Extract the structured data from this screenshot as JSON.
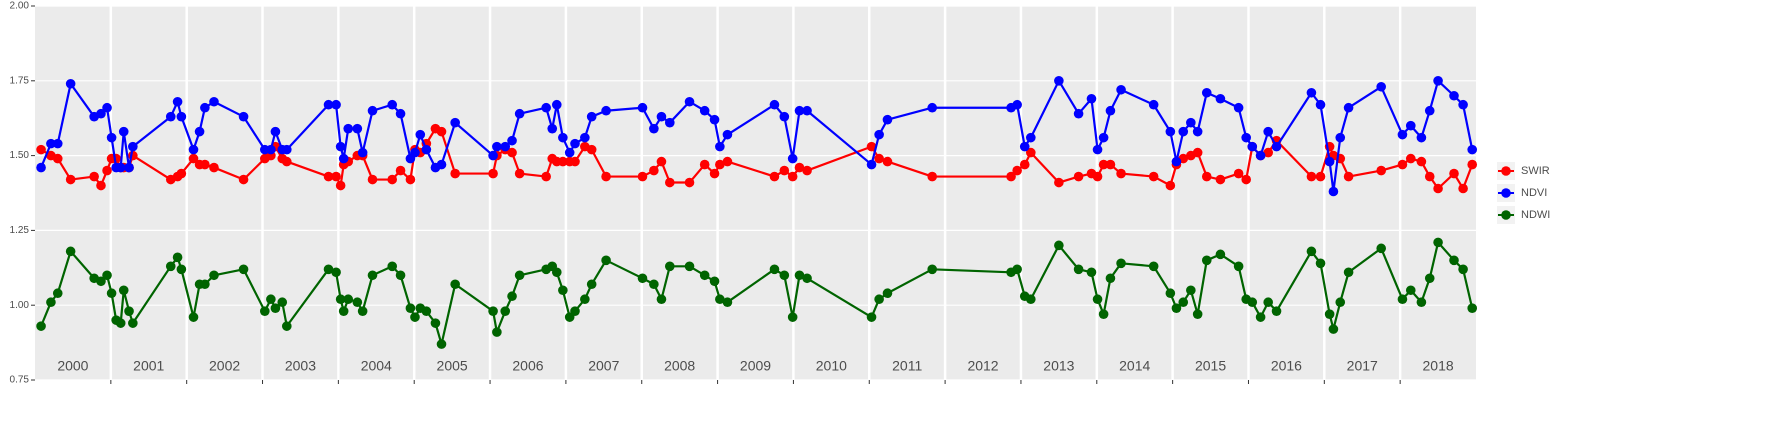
{
  "chart_data": {
    "type": "line",
    "x": [
      2000.08,
      2000.21,
      2000.3,
      2000.47,
      2000.78,
      2000.87,
      2000.95,
      2001.01,
      2001.07,
      2001.13,
      2001.17,
      2001.24,
      2001.29,
      2001.79,
      2001.88,
      2001.93,
      2002.09,
      2002.17,
      2002.24,
      2002.36,
      2002.75,
      2003.03,
      2003.11,
      2003.17,
      2003.26,
      2003.32,
      2003.87,
      2003.97,
      2004.03,
      2004.07,
      2004.13,
      2004.25,
      2004.32,
      2004.45,
      2004.71,
      2004.82,
      2004.95,
      2005.01,
      2005.08,
      2005.16,
      2005.28,
      2005.36,
      2005.54,
      2006.04,
      2006.09,
      2006.2,
      2006.29,
      2006.39,
      2006.74,
      2006.82,
      2006.88,
      2006.96,
      2007.05,
      2007.12,
      2007.25,
      2007.34,
      2007.53,
      2008.01,
      2008.16,
      2008.26,
      2008.37,
      2008.63,
      2008.83,
      2008.96,
      2009.03,
      2009.13,
      2009.75,
      2009.88,
      2009.99,
      2010.08,
      2010.18,
      2011.03,
      2011.13,
      2011.24,
      2011.83,
      2012.87,
      2012.95,
      2013.05,
      2013.13,
      2013.5,
      2013.76,
      2013.93,
      2014.01,
      2014.09,
      2014.18,
      2014.32,
      2014.75,
      2014.97,
      2015.05,
      2015.14,
      2015.24,
      2015.33,
      2015.45,
      2015.63,
      2015.87,
      2015.97,
      2016.05,
      2016.16,
      2016.26,
      2016.37,
      2016.83,
      2016.95,
      2017.07,
      2017.12,
      2017.21,
      2017.32,
      2017.75,
      2018.03,
      2018.14,
      2018.28,
      2018.39,
      2018.5,
      2018.71,
      2018.83,
      2018.95
    ],
    "series": [
      {
        "name": "SWIR",
        "color": "#ff0000",
        "values": [
          1.52,
          1.5,
          1.49,
          1.42,
          1.43,
          1.4,
          1.45,
          1.49,
          1.49,
          1.46,
          1.46,
          1.46,
          1.5,
          1.42,
          1.43,
          1.44,
          1.49,
          1.47,
          1.47,
          1.46,
          1.42,
          1.49,
          1.5,
          1.53,
          1.49,
          1.48,
          1.43,
          1.43,
          1.4,
          1.47,
          1.48,
          1.5,
          1.5,
          1.42,
          1.42,
          1.45,
          1.42,
          1.52,
          1.51,
          1.54,
          1.59,
          1.58,
          1.44,
          1.44,
          1.5,
          1.52,
          1.51,
          1.44,
          1.43,
          1.49,
          1.48,
          1.48,
          1.48,
          1.48,
          1.53,
          1.52,
          1.43,
          1.43,
          1.45,
          1.48,
          1.41,
          1.41,
          1.47,
          1.44,
          1.47,
          1.48,
          1.43,
          1.45,
          1.43,
          1.46,
          1.45,
          1.53,
          1.49,
          1.48,
          1.43,
          1.43,
          1.45,
          1.47,
          1.51,
          1.41,
          1.43,
          1.44,
          1.43,
          1.47,
          1.47,
          1.44,
          1.43,
          1.4,
          1.47,
          1.49,
          1.5,
          1.51,
          1.43,
          1.42,
          1.44,
          1.42,
          1.53,
          1.5,
          1.51,
          1.55,
          1.43,
          1.43,
          1.53,
          1.5,
          1.49,
          1.43,
          1.45,
          1.47,
          1.49,
          1.48,
          1.43,
          1.39,
          1.44,
          1.39,
          1.47
        ]
      },
      {
        "name": "NDVI",
        "color": "#0000ff",
        "values": [
          1.46,
          1.54,
          1.54,
          1.74,
          1.63,
          1.64,
          1.66,
          1.56,
          1.46,
          1.46,
          1.58,
          1.46,
          1.53,
          1.63,
          1.68,
          1.63,
          1.52,
          1.58,
          1.66,
          1.68,
          1.63,
          1.52,
          1.52,
          1.58,
          1.52,
          1.52,
          1.67,
          1.67,
          1.53,
          1.49,
          1.59,
          1.59,
          1.51,
          1.65,
          1.67,
          1.64,
          1.49,
          1.51,
          1.57,
          1.52,
          1.46,
          1.47,
          1.61,
          1.5,
          1.53,
          1.53,
          1.55,
          1.64,
          1.66,
          1.59,
          1.67,
          1.56,
          1.51,
          1.54,
          1.56,
          1.63,
          1.65,
          1.66,
          1.59,
          1.63,
          1.61,
          1.68,
          1.65,
          1.62,
          1.53,
          1.57,
          1.67,
          1.63,
          1.49,
          1.65,
          1.65,
          1.47,
          1.57,
          1.62,
          1.66,
          1.66,
          1.67,
          1.53,
          1.56,
          1.75,
          1.64,
          1.69,
          1.52,
          1.56,
          1.65,
          1.72,
          1.67,
          1.58,
          1.48,
          1.58,
          1.61,
          1.58,
          1.71,
          1.69,
          1.66,
          1.56,
          1.53,
          1.5,
          1.58,
          1.53,
          1.71,
          1.67,
          1.48,
          1.38,
          1.56,
          1.66,
          1.73,
          1.57,
          1.6,
          1.56,
          1.65,
          1.75,
          1.7,
          1.67,
          1.52
        ]
      },
      {
        "name": "NDWI",
        "color": "#006400",
        "values": [
          0.93,
          1.01,
          1.04,
          1.18,
          1.09,
          1.08,
          1.1,
          1.04,
          0.95,
          0.94,
          1.05,
          0.98,
          0.94,
          1.13,
          1.16,
          1.12,
          0.96,
          1.07,
          1.07,
          1.1,
          1.12,
          0.98,
          1.02,
          0.99,
          1.01,
          0.93,
          1.12,
          1.11,
          1.02,
          0.98,
          1.02,
          1.01,
          0.98,
          1.1,
          1.13,
          1.1,
          0.99,
          0.96,
          0.99,
          0.98,
          0.94,
          0.87,
          1.07,
          0.98,
          0.91,
          0.98,
          1.03,
          1.1,
          1.12,
          1.13,
          1.11,
          1.05,
          0.96,
          0.98,
          1.02,
          1.07,
          1.15,
          1.09,
          1.07,
          1.02,
          1.13,
          1.13,
          1.1,
          1.08,
          1.02,
          1.01,
          1.12,
          1.1,
          0.96,
          1.1,
          1.09,
          0.96,
          1.02,
          1.04,
          1.12,
          1.11,
          1.12,
          1.03,
          1.02,
          1.2,
          1.12,
          1.11,
          1.02,
          0.97,
          1.09,
          1.14,
          1.13,
          1.04,
          0.99,
          1.01,
          1.05,
          0.97,
          1.15,
          1.17,
          1.13,
          1.02,
          1.01,
          0.96,
          1.01,
          0.98,
          1.18,
          1.14,
          0.97,
          0.92,
          1.01,
          1.11,
          1.19,
          1.02,
          1.05,
          1.01,
          1.09,
          1.21,
          1.15,
          1.12,
          0.99
        ]
      }
    ],
    "xlim": [
      2000,
      2019
    ],
    "xticks": [
      {
        "value": 2000.5,
        "label": "2000"
      },
      {
        "value": 2001.5,
        "label": "2001"
      },
      {
        "value": 2002.5,
        "label": "2002"
      },
      {
        "value": 2003.5,
        "label": "2003"
      },
      {
        "value": 2004.5,
        "label": "2004"
      },
      {
        "value": 2005.5,
        "label": "2005"
      },
      {
        "value": 2006.5,
        "label": "2006"
      },
      {
        "value": 2007.5,
        "label": "2007"
      },
      {
        "value": 2008.5,
        "label": "2008"
      },
      {
        "value": 2009.5,
        "label": "2009"
      },
      {
        "value": 2010.5,
        "label": "2010"
      },
      {
        "value": 2011.5,
        "label": "2011"
      },
      {
        "value": 2012.5,
        "label": "2012"
      },
      {
        "value": 2013.5,
        "label": "2013"
      },
      {
        "value": 2014.5,
        "label": "2014"
      },
      {
        "value": 2015.5,
        "label": "2015"
      },
      {
        "value": 2016.5,
        "label": "2016"
      },
      {
        "value": 2017.5,
        "label": "2017"
      },
      {
        "value": 2018.5,
        "label": "2018"
      }
    ],
    "xgrid": [
      2001,
      2002,
      2003,
      2004,
      2005,
      2006,
      2007,
      2008,
      2009,
      2010,
      2011,
      2012,
      2013,
      2014,
      2015,
      2016,
      2017,
      2018
    ],
    "ylim": [
      0.75,
      2.0
    ],
    "yticks": [
      {
        "value": 0.75,
        "label": "0.75"
      },
      {
        "value": 1.0,
        "label": "1.00"
      },
      {
        "value": 1.25,
        "label": "1.25"
      },
      {
        "value": 1.5,
        "label": "1.50"
      },
      {
        "value": 1.75,
        "label": "1.75"
      },
      {
        "value": 2.0,
        "label": "2.00"
      }
    ],
    "grid": true,
    "legend": "right"
  }
}
